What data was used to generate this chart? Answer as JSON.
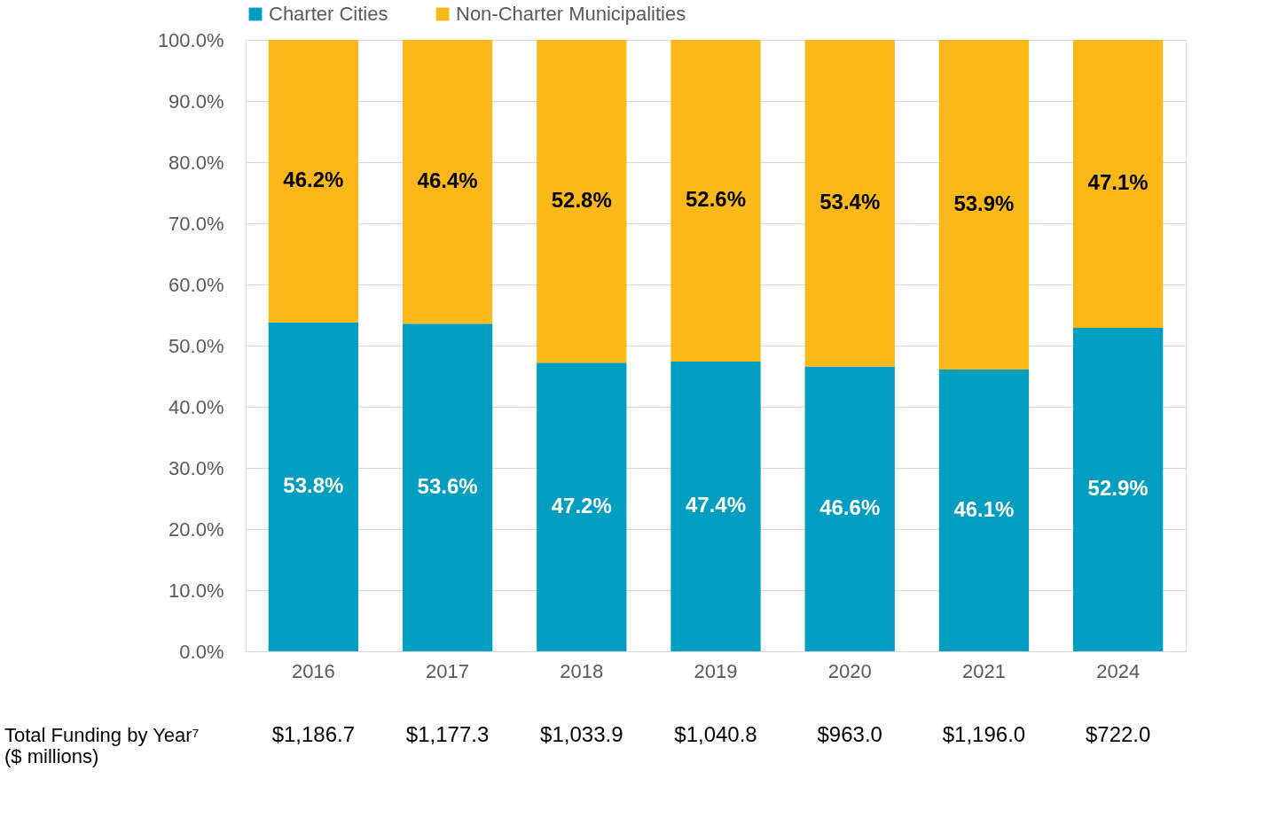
{
  "chart_data": {
    "type": "bar",
    "stacked": true,
    "categories": [
      "2016",
      "2017",
      "2018",
      "2019",
      "2020",
      "2021",
      "2024"
    ],
    "series": [
      {
        "name": "Charter Cities",
        "color": "#009fc1",
        "values": [
          53.8,
          53.6,
          47.2,
          47.4,
          46.6,
          46.1,
          52.9
        ],
        "value_labels": [
          "53.8%",
          "53.6%",
          "47.2%",
          "47.4%",
          "46.6%",
          "46.1%",
          "52.9%"
        ]
      },
      {
        "name": "Non-Charter Municipalities",
        "color": "#fbb818",
        "values": [
          46.2,
          46.4,
          52.8,
          52.6,
          53.4,
          53.9,
          47.1
        ],
        "value_labels": [
          "46.2%",
          "46.4%",
          "52.8%",
          "52.6%",
          "53.4%",
          "53.9%",
          "47.1%"
        ]
      }
    ],
    "ylim": [
      0,
      100
    ],
    "yticks": [
      {
        "value": 0,
        "label": "0.0%"
      },
      {
        "value": 10,
        "label": "10.0%"
      },
      {
        "value": 20,
        "label": "20.0%"
      },
      {
        "value": 30,
        "label": "30.0%"
      },
      {
        "value": 40,
        "label": "40.0%"
      },
      {
        "value": 50,
        "label": "50.0%"
      },
      {
        "value": 60,
        "label": "60.0%"
      },
      {
        "value": 70,
        "label": "70.0%"
      },
      {
        "value": 80,
        "label": "80.0%"
      },
      {
        "value": 90,
        "label": "90.0%"
      },
      {
        "value": 100,
        "label": "100.0%"
      }
    ],
    "grid": "y",
    "legend": "top",
    "annotations": [
      "Total Funding by Year⁷\n($ millions)",
      "$1,186.7",
      "$1,177.3",
      "$1,033.9",
      "$1,040.8",
      "$963.0",
      "$1,196.0",
      "$722.0"
    ]
  }
}
